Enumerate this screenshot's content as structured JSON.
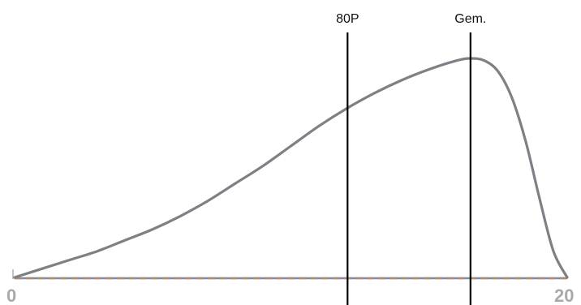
{
  "chart_data": {
    "type": "line",
    "x": [
      0,
      1,
      2,
      3,
      4,
      5,
      6,
      7,
      8,
      9,
      10,
      11,
      12,
      13,
      14,
      15,
      16,
      16.5,
      17,
      17.5,
      18,
      18.5,
      19,
      19.5,
      20
    ],
    "values": [
      0,
      0.04,
      0.08,
      0.12,
      0.17,
      0.22,
      0.28,
      0.35,
      0.43,
      0.51,
      0.6,
      0.69,
      0.77,
      0.84,
      0.9,
      0.95,
      0.99,
      1.0,
      0.99,
      0.94,
      0.82,
      0.62,
      0.36,
      0.12,
      0.0
    ],
    "xlim": [
      0,
      20
    ],
    "ylim": [
      0,
      1
    ],
    "tick_labels": {
      "min": "0",
      "max": "20"
    },
    "markers": [
      {
        "label": "80P",
        "x": 12.05
      },
      {
        "label": "Gem.",
        "x": 16.5
      }
    ],
    "curve_color": "#7f7f86",
    "marker_color": "#000000"
  }
}
